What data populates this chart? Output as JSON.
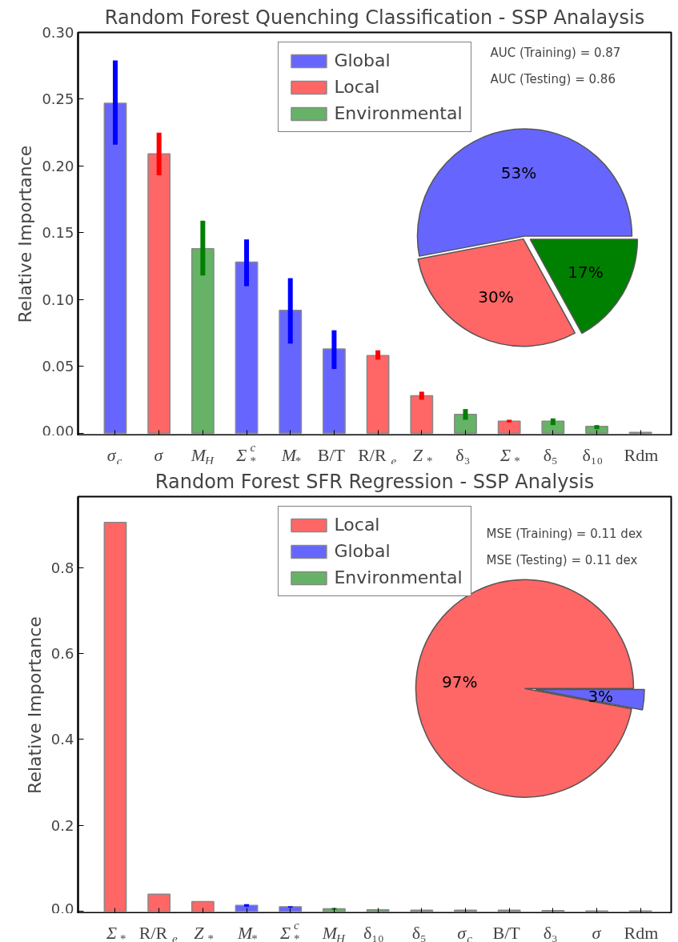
{
  "chart_data": [
    {
      "type": "bar",
      "title": "Random Forest Quenching Classification - SSP Analaysis",
      "ylabel": "Relative Importance",
      "categories": [
        "σ$_{c}$",
        "σ",
        "M$_{H}$",
        "Σ$_{*}$$^{c}$",
        "M$_{*}$",
        "B/T",
        "R/R$_{e}$",
        "Z$_{*}$",
        "δ₃",
        "Σ$_{*}$",
        "δ₅",
        "δ₁₀",
        "Rdm"
      ],
      "series": [
        {
          "name": "Global",
          "color": "#6666ff",
          "values": [
            0.247,
            null,
            null,
            0.128,
            0.092,
            0.063,
            null,
            null,
            null,
            null,
            null,
            null,
            null
          ],
          "errors": [
            [
              0.216,
              0.279
            ],
            null,
            null,
            [
              0.11,
              0.145
            ],
            [
              0.067,
              0.116
            ],
            [
              0.048,
              0.077
            ],
            null,
            null,
            null,
            null,
            null,
            null,
            null
          ]
        },
        {
          "name": "Local",
          "color": "#ff6666",
          "values": [
            null,
            0.209,
            null,
            null,
            null,
            null,
            0.058,
            0.028,
            null,
            0.009,
            null,
            null,
            null
          ],
          "errors": [
            null,
            [
              0.193,
              0.225
            ],
            null,
            null,
            null,
            null,
            [
              0.055,
              0.062
            ],
            [
              0.025,
              0.031
            ],
            null,
            [
              0.008,
              0.01
            ],
            null,
            null,
            null
          ]
        },
        {
          "name": "Environmental",
          "color": "#66b266",
          "values": [
            null,
            null,
            0.138,
            null,
            null,
            null,
            null,
            null,
            0.014,
            null,
            0.009,
            0.005,
            0.0005
          ],
          "errors": [
            null,
            null,
            [
              0.118,
              0.159
            ],
            null,
            null,
            null,
            null,
            null,
            [
              0.01,
              0.018
            ],
            null,
            [
              0.006,
              0.011
            ],
            [
              0.003,
              0.006
            ],
            null
          ]
        }
      ],
      "ylim": [
        -0.002,
        0.3
      ],
      "yticks": [
        {
          "value": 0,
          "label": "0.00"
        },
        {
          "value": 0.05,
          "label": "0.05"
        },
        {
          "value": 0.1,
          "label": "0.10"
        },
        {
          "value": 0.15,
          "label": "0.15"
        },
        {
          "value": 0.2,
          "label": "0.20"
        },
        {
          "value": 0.25,
          "label": "0.25"
        },
        {
          "value": 0.3,
          "label": "0.30"
        }
      ],
      "legend": "top",
      "grid": false,
      "annotations": [
        "AUC (Training) = 0.87",
        "AUC (Testing) = 0.86"
      ]
    },
    {
      "type": "pie",
      "categories": [
        null,
        null,
        null
      ],
      "values": [
        53,
        30,
        17
      ],
      "colors": [
        "#6666ff",
        "#ff6666",
        "#008000"
      ],
      "value_labels": [
        "53%",
        "30%",
        "17%"
      ]
    },
    {
      "type": "bar",
      "title": "Random Forest SFR Regression - SSP Analysis",
      "ylabel": "Relative Importance",
      "categories": [
        "Σ$_{*}$",
        "R/R$_{e}$",
        "Z$_{*}$",
        "M$_{*}$",
        "Σ$_{*}$$^{c}$",
        "M$_{H}$",
        "δ₁₀",
        "δ₅",
        "σ$_{c}$",
        "B/T",
        "δ₃",
        "σ",
        "Rdm"
      ],
      "series": [
        {
          "name": "Local",
          "color": "#ff6666",
          "values": [
            0.905,
            0.04,
            0.023,
            null,
            null,
            null,
            null,
            null,
            null,
            null,
            null,
            0.001,
            null
          ],
          "errors": [
            null,
            null,
            null,
            null,
            null,
            null,
            null,
            null,
            null,
            null,
            null,
            null,
            null
          ]
        },
        {
          "name": "Global",
          "color": "#6666ff",
          "values": [
            null,
            null,
            null,
            0.014,
            0.011,
            null,
            null,
            null,
            0.003,
            0.003,
            null,
            null,
            null
          ],
          "errors": [
            null,
            null,
            null,
            [
              0.011,
              0.017
            ],
            [
              0.009,
              0.012
            ],
            null,
            null,
            null,
            null,
            null,
            null,
            null,
            null
          ]
        },
        {
          "name": "Environmental",
          "color": "#66b266",
          "values": [
            null,
            null,
            null,
            null,
            null,
            0.006,
            0.004,
            0.003,
            null,
            null,
            0.002,
            null,
            0.001
          ],
          "errors": [
            null,
            null,
            null,
            null,
            null,
            [
              0.004,
              0.008
            ],
            null,
            null,
            null,
            null,
            null,
            null,
            null
          ]
        }
      ],
      "ylim": [
        -0.005,
        0.965
      ],
      "yticks": [
        {
          "value": 0,
          "label": "0.0"
        },
        {
          "value": 0.2,
          "label": "0.2"
        },
        {
          "value": 0.4,
          "label": "0.4"
        },
        {
          "value": 0.6,
          "label": "0.6"
        },
        {
          "value": 0.8,
          "label": "0.8"
        }
      ],
      "legend": "top",
      "grid": false,
      "annotations": [
        "MSE (Training) = 0.11 dex",
        "MSE (Testing) = 0.11 dex"
      ]
    },
    {
      "type": "pie",
      "categories": [
        null,
        null
      ],
      "values": [
        97,
        3
      ],
      "colors": [
        "#ff6666",
        "#6666ff"
      ],
      "value_labels": [
        "97%",
        "3%"
      ]
    }
  ]
}
